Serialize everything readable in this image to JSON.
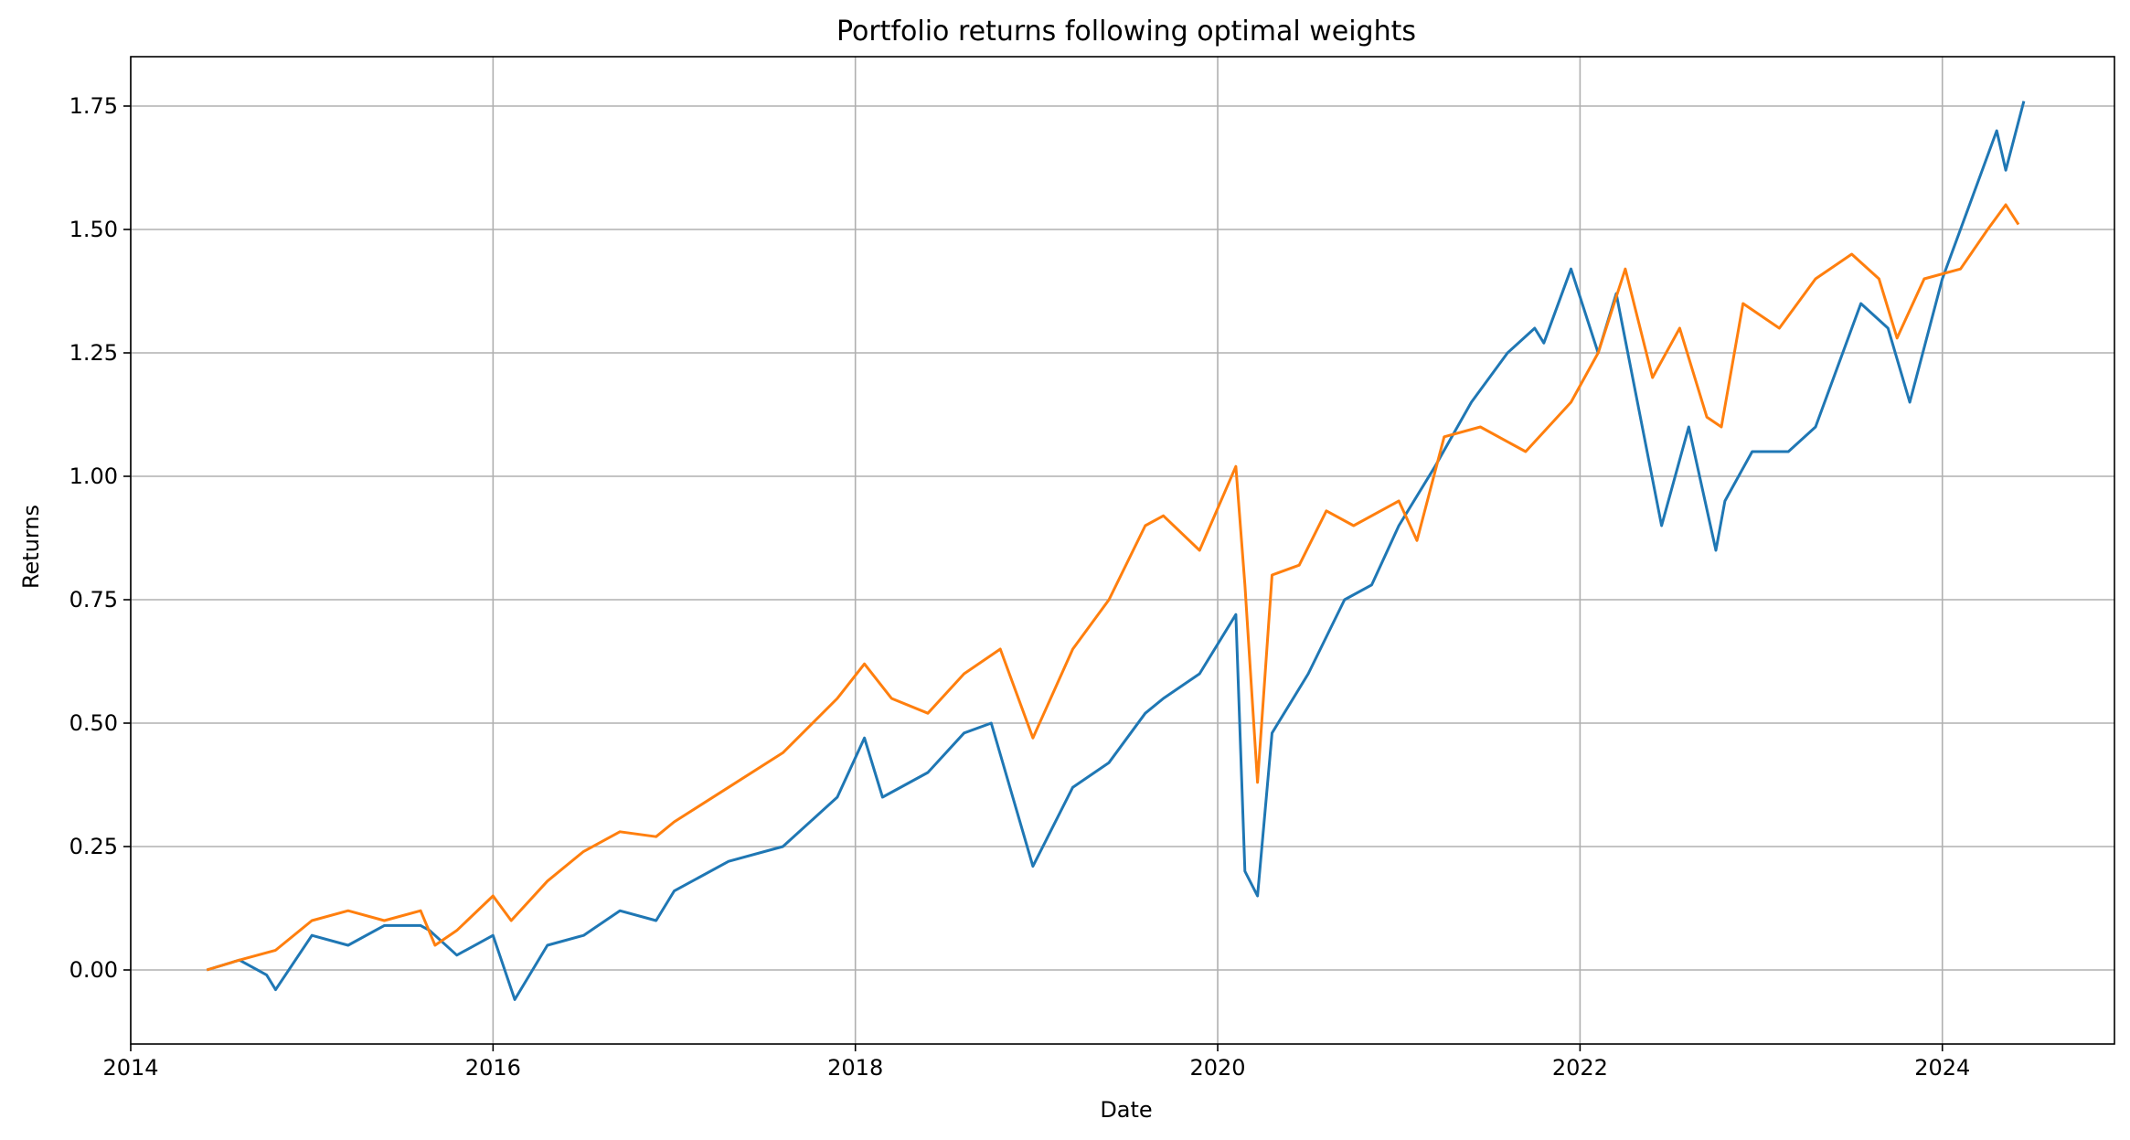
{
  "chart_data": {
    "type": "line",
    "title": "Portfolio returns following optimal weights",
    "xlabel": "Date",
    "ylabel": "Returns",
    "grid": true,
    "xlim": [
      2014.0,
      2024.95
    ],
    "ylim": [
      -0.15,
      1.85
    ],
    "x_ticks": [
      2014,
      2016,
      2018,
      2020,
      2022,
      2024
    ],
    "x_tick_labels": [
      "2014",
      "2016",
      "2018",
      "2020",
      "2022",
      "2024"
    ],
    "y_ticks": [
      0.0,
      0.25,
      0.5,
      0.75,
      1.0,
      1.25,
      1.5,
      1.75
    ],
    "y_tick_labels": [
      "0.00",
      "0.25",
      "0.50",
      "0.75",
      "1.00",
      "1.25",
      "1.50",
      "1.75"
    ],
    "series": [
      {
        "color": "#1f77b4",
        "x": [
          2014.42,
          2014.6,
          2014.75,
          2014.8,
          2015.0,
          2015.2,
          2015.4,
          2015.6,
          2015.65,
          2015.8,
          2016.0,
          2016.12,
          2016.3,
          2016.5,
          2016.7,
          2016.9,
          2017.0,
          2017.3,
          2017.6,
          2017.9,
          2018.05,
          2018.15,
          2018.4,
          2018.6,
          2018.75,
          2018.98,
          2019.2,
          2019.4,
          2019.6,
          2019.7,
          2019.9,
          2020.1,
          2020.15,
          2020.22,
          2020.3,
          2020.5,
          2020.7,
          2020.85,
          2021.0,
          2021.2,
          2021.4,
          2021.6,
          2021.75,
          2021.8,
          2021.95,
          2022.1,
          2022.2,
          2022.45,
          2022.6,
          2022.75,
          2022.8,
          2022.95,
          2023.15,
          2023.3,
          2023.55,
          2023.7,
          2023.82,
          2024.0,
          2024.2,
          2024.3,
          2024.35,
          2024.45
        ],
        "y": [
          0.0,
          0.02,
          -0.01,
          -0.04,
          0.07,
          0.05,
          0.09,
          0.09,
          0.08,
          0.03,
          0.07,
          -0.06,
          0.05,
          0.07,
          0.12,
          0.1,
          0.16,
          0.22,
          0.25,
          0.35,
          0.47,
          0.35,
          0.4,
          0.48,
          0.5,
          0.21,
          0.37,
          0.42,
          0.52,
          0.55,
          0.6,
          0.72,
          0.2,
          0.15,
          0.48,
          0.6,
          0.75,
          0.78,
          0.9,
          1.02,
          1.15,
          1.25,
          1.3,
          1.27,
          1.42,
          1.25,
          1.37,
          0.9,
          1.1,
          0.85,
          0.95,
          1.05,
          1.05,
          1.1,
          1.35,
          1.3,
          1.15,
          1.4,
          1.6,
          1.7,
          1.62,
          1.76
        ]
      },
      {
        "color": "#ff7f0e",
        "x": [
          2014.42,
          2014.6,
          2014.8,
          2015.0,
          2015.2,
          2015.4,
          2015.6,
          2015.68,
          2015.8,
          2016.0,
          2016.1,
          2016.3,
          2016.5,
          2016.7,
          2016.9,
          2017.0,
          2017.3,
          2017.6,
          2017.9,
          2018.05,
          2018.2,
          2018.4,
          2018.6,
          2018.8,
          2018.98,
          2019.2,
          2019.4,
          2019.6,
          2019.7,
          2019.9,
          2020.1,
          2020.15,
          2020.22,
          2020.3,
          2020.45,
          2020.6,
          2020.75,
          2021.0,
          2021.1,
          2021.25,
          2021.45,
          2021.7,
          2021.95,
          2022.1,
          2022.25,
          2022.4,
          2022.55,
          2022.7,
          2022.78,
          2022.9,
          2023.1,
          2023.3,
          2023.5,
          2023.65,
          2023.75,
          2023.9,
          2024.1,
          2024.25,
          2024.35,
          2024.42
        ],
        "y": [
          0.0,
          0.02,
          0.04,
          0.1,
          0.12,
          0.1,
          0.12,
          0.05,
          0.08,
          0.15,
          0.1,
          0.18,
          0.24,
          0.28,
          0.27,
          0.3,
          0.37,
          0.44,
          0.55,
          0.62,
          0.55,
          0.52,
          0.6,
          0.65,
          0.47,
          0.65,
          0.75,
          0.9,
          0.92,
          0.85,
          1.02,
          0.78,
          0.38,
          0.8,
          0.82,
          0.93,
          0.9,
          0.95,
          0.87,
          1.08,
          1.1,
          1.05,
          1.15,
          1.25,
          1.42,
          1.2,
          1.3,
          1.12,
          1.1,
          1.35,
          1.3,
          1.4,
          1.45,
          1.4,
          1.28,
          1.4,
          1.42,
          1.5,
          1.55,
          1.51
        ]
      }
    ]
  }
}
